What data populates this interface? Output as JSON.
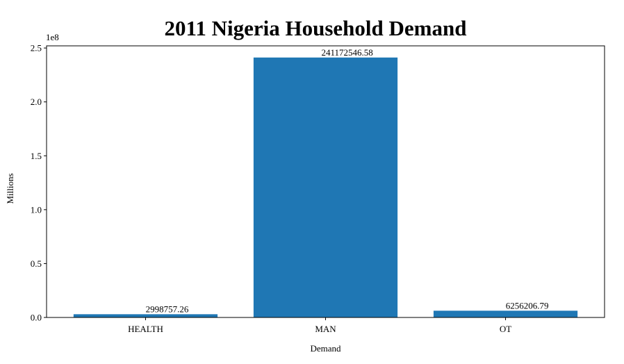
{
  "chart_data": {
    "type": "bar",
    "title": "2011 Nigeria Household Demand",
    "xlabel": "Demand",
    "ylabel": "Millions",
    "y_offset_label": "1e8",
    "categories": [
      "HEALTH",
      "MAN",
      "OT"
    ],
    "values": [
      2998757.26,
      241172546.58,
      6256206.79
    ],
    "data_labels": [
      "2998757.26",
      "241172546.58",
      "6256206.79"
    ],
    "ylim": [
      0,
      252000000
    ],
    "yticks": [
      0,
      50000000,
      100000000,
      150000000,
      200000000,
      250000000
    ],
    "ytick_labels": [
      "0.0",
      "0.5",
      "1.0",
      "1.5",
      "2.0",
      "2.5"
    ],
    "bar_color": "#1f77b4",
    "grid": false
  }
}
